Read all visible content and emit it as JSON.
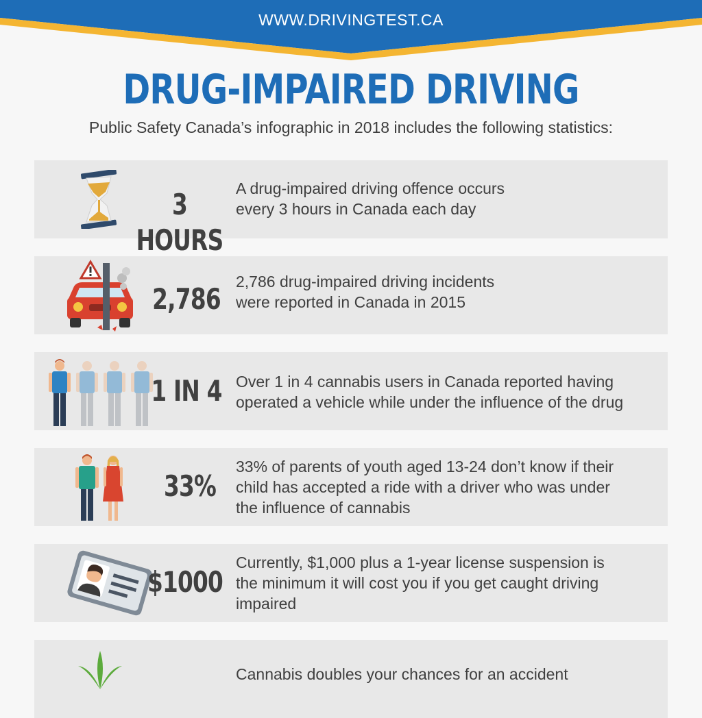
{
  "header": {
    "url": "WWW.DRIVINGTEST.CA",
    "brand_blue": "#1e6db7",
    "accent_yellow": "#f4b532"
  },
  "title": "DRUG-IMPAIRED DRIVING",
  "subtitle": "Public Safety Canada’s infographic in 2018 includes the following statistics:",
  "stats": [
    {
      "icon": "hourglass-icon",
      "value": "3 HOURS",
      "lines": [
        "A drug-impaired driving offence occurs",
        "every 3 hours in Canada each day"
      ]
    },
    {
      "icon": "car-crash-icon",
      "value": "2,786",
      "lines": [
        "2,786 drug-impaired driving incidents",
        "were reported in Canada in 2015"
      ]
    },
    {
      "icon": "people-icon",
      "value": "1 IN 4",
      "lines": [
        "Over 1 in 4 cannabis users in Canada reported having",
        "operated a vehicle while under the influence of the drug"
      ]
    },
    {
      "icon": "parents-icon",
      "value": "33%",
      "lines": [
        "33% of parents of youth aged 13-24 don’t know if their",
        "child has accepted a ride with a driver who was under",
        "the influence of cannabis"
      ]
    },
    {
      "icon": "license-card-icon",
      "value": "$1000",
      "lines": [
        "Currently, $1,000 plus a 1-year license suspension is",
        "the minimum it will cost you if you get caught driving",
        "impaired"
      ]
    },
    {
      "icon": "cannabis-leaf-icon",
      "value": "",
      "lines": [
        "Cannabis doubles your chances for an accident"
      ]
    }
  ]
}
